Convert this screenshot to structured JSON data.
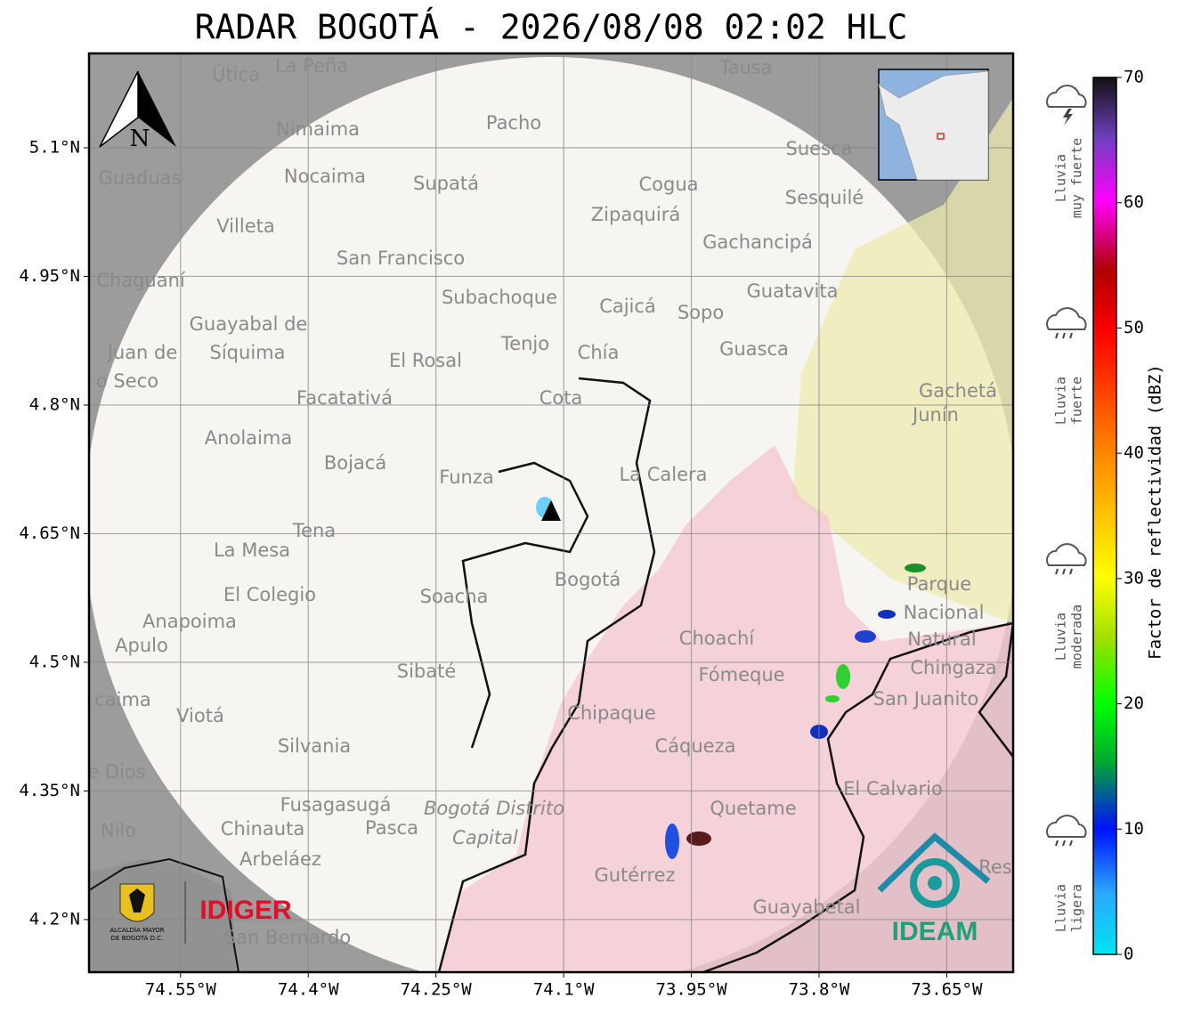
{
  "map": {
    "title": "RADAR BOGOTÁ - 2026/08/08 02:02 HLC",
    "xlim": [
      -74.6575,
      -73.572
    ],
    "ylim": [
      4.1387,
      5.21
    ],
    "lon_ticks": [
      {
        "value": -74.55,
        "label": "74.55°W"
      },
      {
        "value": -74.4,
        "label": "74.4°W"
      },
      {
        "value": -74.25,
        "label": "74.25°W"
      },
      {
        "value": -74.1,
        "label": "74.1°W"
      },
      {
        "value": -73.95,
        "label": "73.95°W"
      },
      {
        "value": -73.8,
        "label": "73.8°W"
      },
      {
        "value": -73.65,
        "label": "73.65°W"
      }
    ],
    "lat_ticks": [
      {
        "value": 5.1,
        "label": "5.1°N"
      },
      {
        "value": 4.95,
        "label": "4.95°N"
      },
      {
        "value": 4.8,
        "label": "4.8°N"
      },
      {
        "value": 4.65,
        "label": "4.65°N"
      },
      {
        "value": 4.5,
        "label": "4.5°N"
      },
      {
        "value": 4.35,
        "label": "4.35°N"
      },
      {
        "value": 4.2,
        "label": "4.2°N"
      }
    ],
    "north": "N",
    "places": [
      "La Peña",
      "Útica",
      "Tausa",
      "Pacho",
      "Nimaima",
      "Guaduas",
      "Nocaima",
      "Supatá",
      "Cogua",
      "Suesca",
      "Sesquilé",
      "Zipaquirá",
      "Villeta",
      "Gachancipá",
      "San Francisco",
      "Chaguaní",
      "Guatavita",
      "Subachoque",
      "Cajicá",
      "Sopo",
      "Guayabal de",
      "Síquima",
      "Juan de",
      "Tenjo",
      "Chía",
      "Guasca",
      "El Rosal",
      "o Seco",
      "Facatativá",
      "Cota",
      "Gachetá",
      "Junín",
      "Anolaima",
      "Bojacá",
      "Funza",
      "La Calera",
      "Tena",
      "La Mesa",
      "Bogotá",
      "Parque",
      "El Colegio",
      "Soacha",
      "Nacional",
      "Anapoima",
      "Apulo",
      "Choachí",
      "Natural",
      "Chingaza",
      "Sibaté",
      "Fómeque",
      "San Juanito",
      "caima",
      "Viotá",
      "Chipaque",
      "Silvania",
      "Cáqueza",
      "e Dios",
      "El Calvario",
      "Fusagasugá",
      "Quetame",
      "Bogotá Distrito",
      "Capital",
      "Nilo",
      "Chinauta",
      "Pasca",
      "Arbeláez",
      "Gutérrez",
      "Res",
      "Guayabetal",
      "San Bernardo"
    ]
  },
  "colorbar": {
    "label": "Factor de reflectividad (dBZ)",
    "lim": [
      0,
      70
    ],
    "ticks": [
      0,
      10,
      20,
      30,
      40,
      50,
      60,
      70
    ]
  },
  "rain_levels": [
    [
      "Lluvia",
      "muy fuerte"
    ],
    [
      "Lluvia",
      "fuerte"
    ],
    [
      "Lluvia",
      "moderada"
    ],
    [
      "Lluvia",
      "ligera"
    ]
  ],
  "logos": {
    "alcaldia": [
      "ALCALDÍA MAYOR",
      "DE BOGOTÁ D.C."
    ],
    "idiger": "IDIGER",
    "ideam": "IDEAM"
  }
}
